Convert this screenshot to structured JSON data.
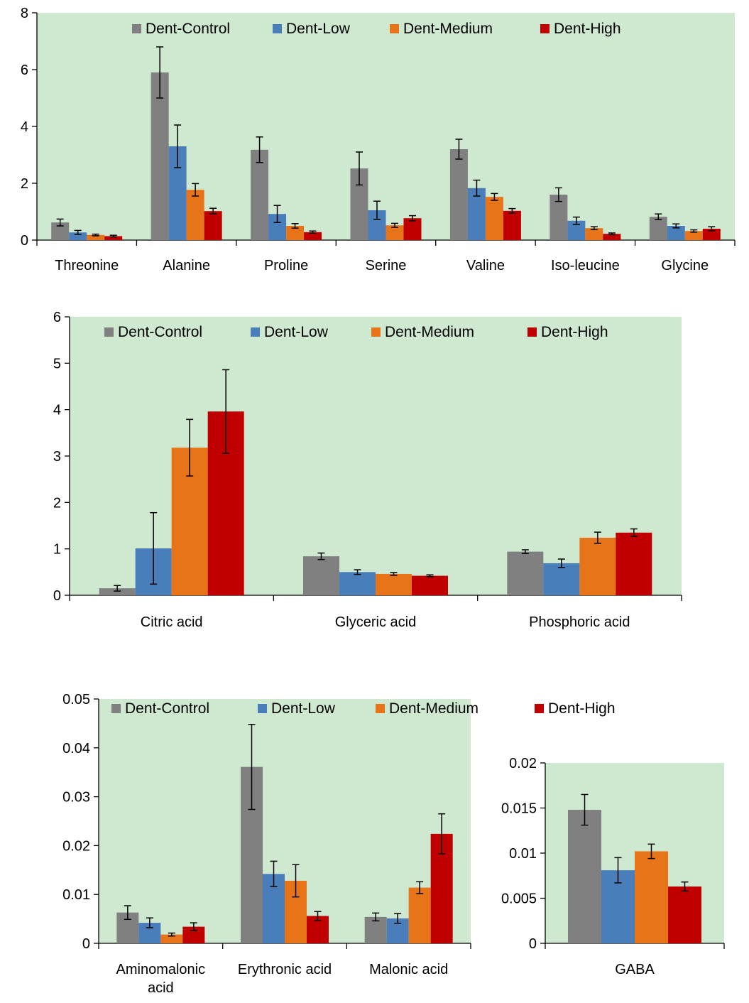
{
  "colors": {
    "plot_bg": "#cfe8d0",
    "series": [
      "#808080",
      "#4a7ebb",
      "#e8741a",
      "#c00000"
    ]
  },
  "legend": [
    "Dent-Control",
    "Dent-Low",
    "Dent-Medium",
    "Dent-High"
  ],
  "chart_data": [
    {
      "type": "bar",
      "categories": [
        "Threonine",
        "Alanine",
        "Proline",
        "Serine",
        "Valine",
        "Iso-leucine",
        "Glycine"
      ],
      "ylim": [
        0,
        8
      ],
      "yticks": [
        "0",
        "2",
        "4",
        "6",
        "8"
      ],
      "ytick_values": [
        0,
        2,
        4,
        6,
        8
      ],
      "series": [
        {
          "name": "Dent-Control",
          "values": [
            0.62,
            5.9,
            3.18,
            2.52,
            3.2,
            1.6,
            0.82
          ],
          "errors": [
            0.12,
            0.9,
            0.45,
            0.58,
            0.35,
            0.24,
            0.1
          ]
        },
        {
          "name": "Dent-Low",
          "values": [
            0.27,
            3.3,
            0.92,
            1.05,
            1.83,
            0.68,
            0.5
          ],
          "errors": [
            0.07,
            0.75,
            0.3,
            0.32,
            0.28,
            0.13,
            0.07
          ]
        },
        {
          "name": "Dent-Medium",
          "values": [
            0.18,
            1.77,
            0.5,
            0.52,
            1.52,
            0.42,
            0.32
          ],
          "errors": [
            0.03,
            0.22,
            0.08,
            0.07,
            0.12,
            0.05,
            0.04
          ]
        },
        {
          "name": "Dent-High",
          "values": [
            0.14,
            1.02,
            0.28,
            0.77,
            1.03,
            0.22,
            0.4
          ],
          "errors": [
            0.03,
            0.1,
            0.04,
            0.09,
            0.08,
            0.03,
            0.07
          ]
        }
      ]
    },
    {
      "type": "bar",
      "categories": [
        "Citric acid",
        "Glyceric acid",
        "Phosphoric acid"
      ],
      "ylim": [
        0,
        6
      ],
      "yticks": [
        "0",
        "1",
        "2",
        "3",
        "4",
        "5",
        "6"
      ],
      "ytick_values": [
        0,
        1,
        2,
        3,
        4,
        5,
        6
      ],
      "series": [
        {
          "name": "Dent-Control",
          "values": [
            0.15,
            0.84,
            0.94
          ],
          "errors": [
            0.06,
            0.07,
            0.04
          ]
        },
        {
          "name": "Dent-Low",
          "values": [
            1.01,
            0.5,
            0.69
          ],
          "errors": [
            0.77,
            0.05,
            0.09
          ]
        },
        {
          "name": "Dent-Medium",
          "values": [
            3.18,
            0.46,
            1.24
          ],
          "errors": [
            0.61,
            0.03,
            0.12
          ]
        },
        {
          "name": "Dent-High",
          "values": [
            3.96,
            0.42,
            1.35
          ],
          "errors": [
            0.9,
            0.02,
            0.08
          ]
        }
      ]
    },
    {
      "type": "bar",
      "categories": [
        "Aminomalonic acid",
        "Erythronic acid",
        "Malonic acid"
      ],
      "ylim": [
        0,
        0.05
      ],
      "yticks": [
        "0",
        "0.01",
        "0.02",
        "0.03",
        "0.04",
        "0.05"
      ],
      "ytick_values": [
        0,
        0.01,
        0.02,
        0.03,
        0.04,
        0.05
      ],
      "series": [
        {
          "name": "Dent-Control",
          "values": [
            0.0063,
            0.0361,
            0.0054
          ],
          "errors": [
            0.0014,
            0.0087,
            0.0008
          ]
        },
        {
          "name": "Dent-Low",
          "values": [
            0.0042,
            0.0142,
            0.0051
          ],
          "errors": [
            0.001,
            0.0026,
            0.001
          ]
        },
        {
          "name": "Dent-Medium",
          "values": [
            0.0018,
            0.0128,
            0.0114
          ],
          "errors": [
            0.0003,
            0.0033,
            0.0012
          ]
        },
        {
          "name": "Dent-High",
          "values": [
            0.0034,
            0.0056,
            0.0224
          ],
          "errors": [
            0.0008,
            0.0009,
            0.0041
          ]
        }
      ]
    },
    {
      "type": "bar",
      "categories": [
        "GABA"
      ],
      "ylim": [
        0,
        0.02
      ],
      "yticks": [
        "0",
        "0.005",
        "0.01",
        "0.015",
        "0.02"
      ],
      "ytick_values": [
        0,
        0.005,
        0.01,
        0.015,
        0.02
      ],
      "series": [
        {
          "name": "Dent-Control",
          "values": [
            0.0148
          ],
          "errors": [
            0.0017
          ]
        },
        {
          "name": "Dent-Low",
          "values": [
            0.0081
          ],
          "errors": [
            0.0014
          ]
        },
        {
          "name": "Dent-Medium",
          "values": [
            0.0102
          ],
          "errors": [
            0.0008
          ]
        },
        {
          "name": "Dent-High",
          "values": [
            0.0063
          ],
          "errors": [
            0.0005
          ]
        }
      ]
    }
  ]
}
